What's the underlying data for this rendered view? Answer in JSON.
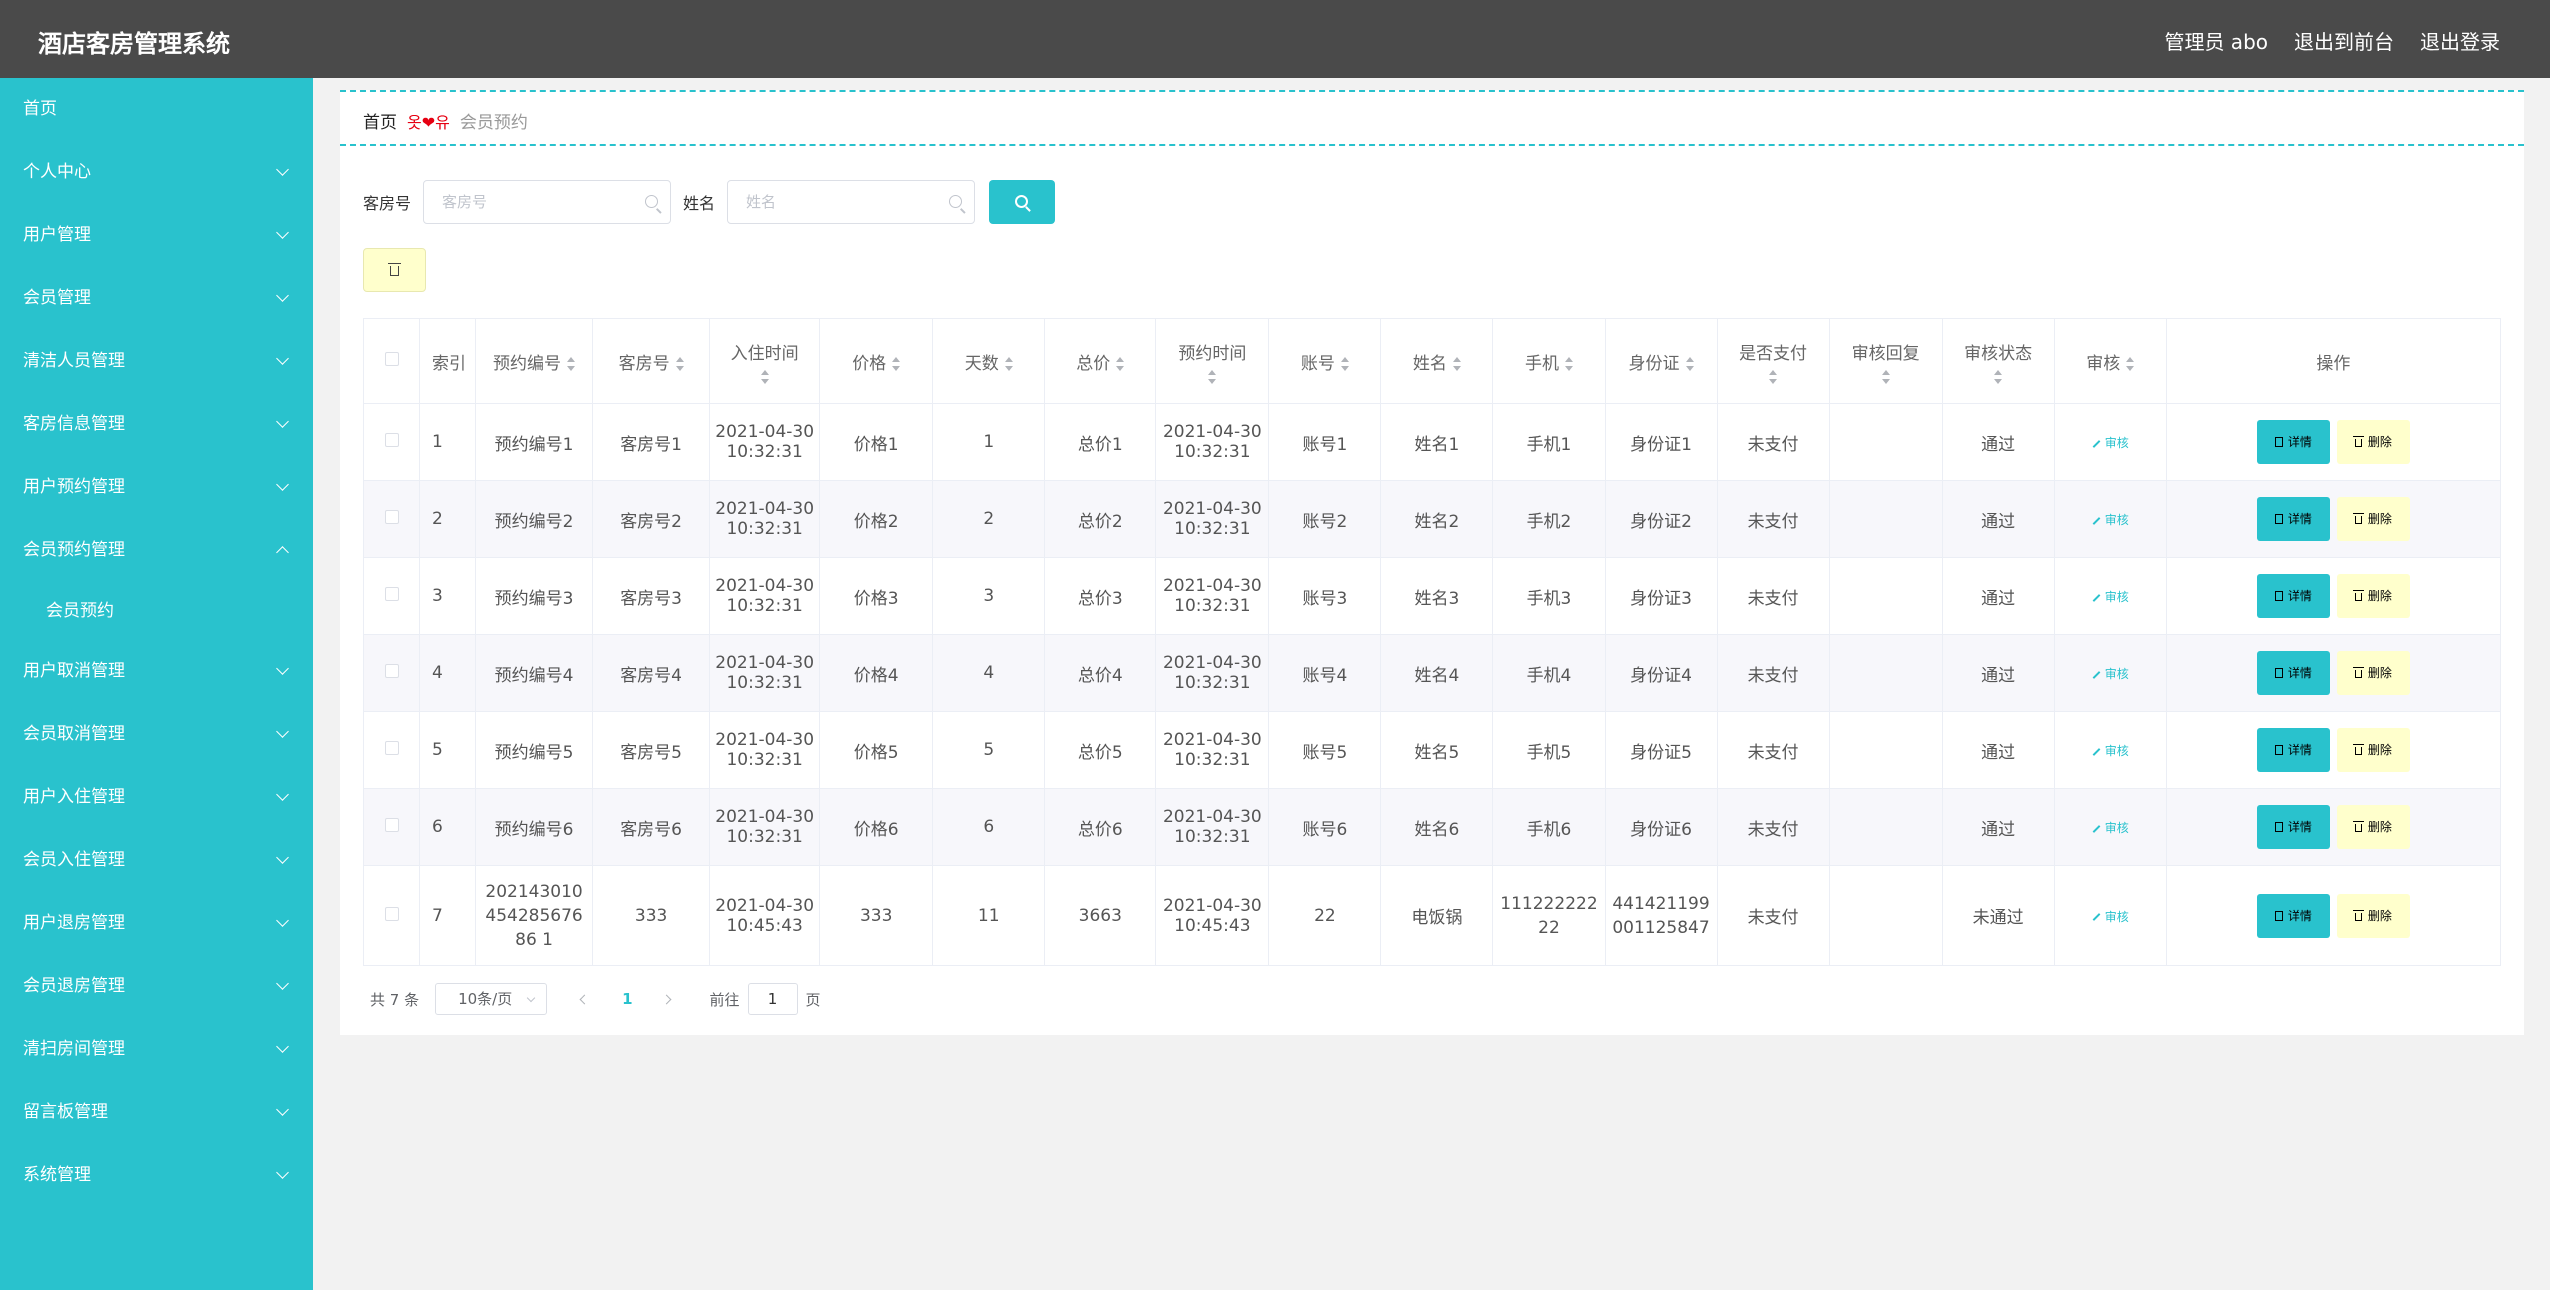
{
  "header": {
    "title": "酒店客房管理系统",
    "user": "管理员 abo",
    "to_front": "退出到前台",
    "logout": "退出登录"
  },
  "sidebar": {
    "items": [
      {
        "label": "首页",
        "chevron": "none"
      },
      {
        "label": "个人中心",
        "chevron": "down"
      },
      {
        "label": "用户管理",
        "chevron": "down"
      },
      {
        "label": "会员管理",
        "chevron": "down"
      },
      {
        "label": "清洁人员管理",
        "chevron": "down"
      },
      {
        "label": "客房信息管理",
        "chevron": "down"
      },
      {
        "label": "用户预约管理",
        "chevron": "down"
      },
      {
        "label": "会员预约管理",
        "chevron": "up"
      },
      {
        "label": "会员预约",
        "sub": true
      },
      {
        "label": "用户取消管理",
        "chevron": "down"
      },
      {
        "label": "会员取消管理",
        "chevron": "down"
      },
      {
        "label": "用户入住管理",
        "chevron": "down"
      },
      {
        "label": "会员入住管理",
        "chevron": "down"
      },
      {
        "label": "用户退房管理",
        "chevron": "down"
      },
      {
        "label": "会员退房管理",
        "chevron": "down"
      },
      {
        "label": "清扫房间管理",
        "chevron": "down"
      },
      {
        "label": "留言板管理",
        "chevron": "down"
      },
      {
        "label": "系统管理",
        "chevron": "down"
      }
    ]
  },
  "breadcrumb": {
    "home": "首页",
    "separator": "옷❤유",
    "current": "会员预约"
  },
  "search": {
    "room_label": "客房号",
    "room_placeholder": "客房号",
    "room_value": "",
    "name_label": "姓名",
    "name_placeholder": "姓名",
    "name_value": ""
  },
  "table": {
    "headers": [
      "索引",
      "预约编号",
      "客房号",
      "入住时间",
      "价格",
      "天数",
      "总价",
      "预约时间",
      "账号",
      "姓名",
      "手机",
      "身份证",
      "是否支付",
      "审核回复",
      "审核状态",
      "审核",
      "操作"
    ],
    "audit_label": "审核",
    "detail_label": "详情",
    "delete_label": "删除",
    "rows": [
      [
        "1",
        "预约编号1",
        "客房号1",
        "2021-04-30 10:32:31",
        "价格1",
        "1",
        "总价1",
        "2021-04-30 10:32:31",
        "账号1",
        "姓名1",
        "手机1",
        "身份证1",
        "未支付",
        "",
        "通过"
      ],
      [
        "2",
        "预约编号2",
        "客房号2",
        "2021-04-30 10:32:31",
        "价格2",
        "2",
        "总价2",
        "2021-04-30 10:32:31",
        "账号2",
        "姓名2",
        "手机2",
        "身份证2",
        "未支付",
        "",
        "通过"
      ],
      [
        "3",
        "预约编号3",
        "客房号3",
        "2021-04-30 10:32:31",
        "价格3",
        "3",
        "总价3",
        "2021-04-30 10:32:31",
        "账号3",
        "姓名3",
        "手机3",
        "身份证3",
        "未支付",
        "",
        "通过"
      ],
      [
        "4",
        "预约编号4",
        "客房号4",
        "2021-04-30 10:32:31",
        "价格4",
        "4",
        "总价4",
        "2021-04-30 10:32:31",
        "账号4",
        "姓名4",
        "手机4",
        "身份证4",
        "未支付",
        "",
        "通过"
      ],
      [
        "5",
        "预约编号5",
        "客房号5",
        "2021-04-30 10:32:31",
        "价格5",
        "5",
        "总价5",
        "2021-04-30 10:32:31",
        "账号5",
        "姓名5",
        "手机5",
        "身份证5",
        "未支付",
        "",
        "通过"
      ],
      [
        "6",
        "预约编号6",
        "客房号6",
        "2021-04-30 10:32:31",
        "价格6",
        "6",
        "总价6",
        "2021-04-30 10:32:31",
        "账号6",
        "姓名6",
        "手机6",
        "身份证6",
        "未支付",
        "",
        "通过"
      ],
      [
        "7",
        "20214301045428567686 1",
        "333",
        "2021-04-30 10:45:43",
        "333",
        "11",
        "3663",
        "2021-04-30 10:45:43",
        "22",
        "电饭锅",
        "11122222222",
        "441421199001125847",
        "未支付",
        "",
        "未通过"
      ]
    ]
  },
  "pager": {
    "total": "共 7 条",
    "size": "10条/页",
    "page": "1",
    "goto": "前往",
    "jump_value": "1",
    "unit": "页"
  },
  "colors": {
    "accent": "#29c2cd",
    "header_bg": "#4a4a4a",
    "delete_bg": "#ffffcc"
  }
}
